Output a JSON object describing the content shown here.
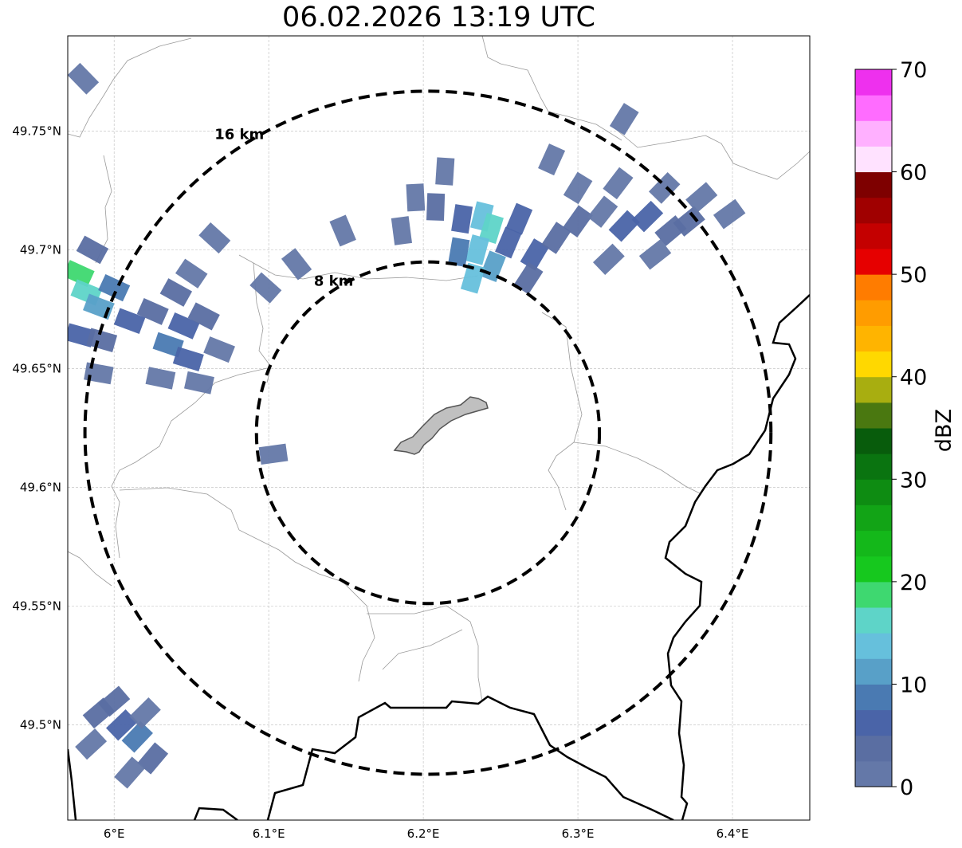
{
  "title": "06.02.2026 13:19 UTC",
  "map": {
    "lon_range": [
      5.97,
      6.45
    ],
    "lat_range": [
      49.46,
      49.79
    ],
    "radar_center": {
      "lon": 6.203,
      "lat": 49.623
    },
    "gridlines": true,
    "x_ticks": [
      {
        "lon": 6.0,
        "label": "6°E"
      },
      {
        "lon": 6.1,
        "label": "6.1°E"
      },
      {
        "lon": 6.2,
        "label": "6.2°E"
      },
      {
        "lon": 6.3,
        "label": "6.3°E"
      },
      {
        "lon": 6.4,
        "label": "6.4°E"
      }
    ],
    "y_ticks": [
      {
        "lat": 49.75,
        "label": "49.75°N"
      },
      {
        "lat": 49.7,
        "label": "49.7°N"
      },
      {
        "lat": 49.65,
        "label": "49.65°N"
      },
      {
        "lat": 49.6,
        "label": "49.6°N"
      },
      {
        "lat": 49.55,
        "label": "49.55°N"
      },
      {
        "lat": 49.5,
        "label": "49.5°N"
      }
    ],
    "range_rings": [
      {
        "km": 8,
        "label": "8 km"
      },
      {
        "km": 16,
        "label": "16 km"
      }
    ],
    "city_fill_color": "#c0c0c0",
    "ring_color": "#000000"
  },
  "colorbar": {
    "label": "dBZ",
    "min": 0,
    "max": 70,
    "step": 2.5,
    "ticks": [
      {
        "value": 0,
        "label": "0"
      },
      {
        "value": 10,
        "label": "10"
      },
      {
        "value": 20,
        "label": "20"
      },
      {
        "value": 30,
        "label": "30"
      },
      {
        "value": 40,
        "label": "40"
      },
      {
        "value": 50,
        "label": "50"
      },
      {
        "value": 60,
        "label": "60"
      },
      {
        "value": 70,
        "label": "70"
      }
    ],
    "colors": [
      "#6478a8",
      "#5a6ea2",
      "#4a64a8",
      "#4a7ab2",
      "#58a0c8",
      "#66c0dc",
      "#5ed4c8",
      "#3ed870",
      "#16c81e",
      "#14b81a",
      "#12a416",
      "#0e8c12",
      "#0a7410",
      "#085c0c",
      "#4a7810",
      "#a8ae10",
      "#ffd800",
      "#ffb400",
      "#ff9c00",
      "#ff7c00",
      "#e60000",
      "#c40000",
      "#a00000",
      "#7e0000",
      "#ffe2ff",
      "#ffb0ff",
      "#ff6cff",
      "#ee30ee"
    ]
  },
  "reflectivity_cells": [
    {
      "lon": 6.208,
      "lat": 49.718,
      "dbz": 3
    },
    {
      "lon": 6.225,
      "lat": 49.713,
      "dbz": 7
    },
    {
      "lon": 6.238,
      "lat": 49.714,
      "dbz": 14
    },
    {
      "lon": 6.244,
      "lat": 49.709,
      "dbz": 17
    },
    {
      "lon": 6.235,
      "lat": 49.7,
      "dbz": 13
    },
    {
      "lon": 6.223,
      "lat": 49.699,
      "dbz": 9
    },
    {
      "lon": 6.245,
      "lat": 49.693,
      "dbz": 12
    },
    {
      "lon": 6.232,
      "lat": 49.688,
      "dbz": 14
    },
    {
      "lon": 6.255,
      "lat": 49.703,
      "dbz": 7
    },
    {
      "lon": 6.262,
      "lat": 49.713,
      "dbz": 5
    },
    {
      "lon": 6.272,
      "lat": 49.698,
      "dbz": 5
    },
    {
      "lon": 6.286,
      "lat": 49.705,
      "dbz": 4
    },
    {
      "lon": 6.3,
      "lat": 49.712,
      "dbz": 3
    },
    {
      "lon": 6.316,
      "lat": 49.716,
      "dbz": 2
    },
    {
      "lon": 6.33,
      "lat": 49.71,
      "dbz": 6
    },
    {
      "lon": 6.345,
      "lat": 49.714,
      "dbz": 5
    },
    {
      "lon": 6.36,
      "lat": 49.708,
      "dbz": 4
    },
    {
      "lon": 6.372,
      "lat": 49.712,
      "dbz": 3
    },
    {
      "lon": 6.186,
      "lat": 49.708,
      "dbz": 2
    },
    {
      "lon": 6.195,
      "lat": 49.722,
      "dbz": 1
    },
    {
      "lon": 6.214,
      "lat": 49.733,
      "dbz": 1
    },
    {
      "lon": 6.283,
      "lat": 49.738,
      "dbz": 1
    },
    {
      "lon": 6.3,
      "lat": 49.726,
      "dbz": 1
    },
    {
      "lon": 6.326,
      "lat": 49.728,
      "dbz": 1
    },
    {
      "lon": 6.356,
      "lat": 49.726,
      "dbz": 1
    },
    {
      "lon": 6.38,
      "lat": 49.722,
      "dbz": 2
    },
    {
      "lon": 6.398,
      "lat": 49.715,
      "dbz": 1
    },
    {
      "lon": 6.35,
      "lat": 49.698,
      "dbz": 2
    },
    {
      "lon": 6.32,
      "lat": 49.696,
      "dbz": 1
    },
    {
      "lon": 6.268,
      "lat": 49.688,
      "dbz": 3
    },
    {
      "lon": 6.148,
      "lat": 49.708,
      "dbz": 1
    },
    {
      "lon": 6.118,
      "lat": 49.694,
      "dbz": 1
    },
    {
      "lon": 6.098,
      "lat": 49.684,
      "dbz": 1
    },
    {
      "lon": 6.065,
      "lat": 49.705,
      "dbz": 1
    },
    {
      "lon": 6.103,
      "lat": 49.614,
      "dbz": 2
    },
    {
      "lon": 6.33,
      "lat": 49.755,
      "dbz": 1
    },
    {
      "lon": 5.977,
      "lat": 49.69,
      "dbz": 18
    },
    {
      "lon": 5.982,
      "lat": 49.682,
      "dbz": 16
    },
    {
      "lon": 5.99,
      "lat": 49.676,
      "dbz": 10
    },
    {
      "lon": 6.0,
      "lat": 49.684,
      "dbz": 9
    },
    {
      "lon": 5.978,
      "lat": 49.664,
      "dbz": 6
    },
    {
      "lon": 5.992,
      "lat": 49.662,
      "dbz": 4
    },
    {
      "lon": 5.986,
      "lat": 49.7,
      "dbz": 3
    },
    {
      "lon": 6.01,
      "lat": 49.67,
      "dbz": 5
    },
    {
      "lon": 6.025,
      "lat": 49.674,
      "dbz": 4
    },
    {
      "lon": 6.04,
      "lat": 49.682,
      "dbz": 3
    },
    {
      "lon": 6.035,
      "lat": 49.66,
      "dbz": 8
    },
    {
      "lon": 6.048,
      "lat": 49.654,
      "dbz": 6
    },
    {
      "lon": 6.045,
      "lat": 49.668,
      "dbz": 5
    },
    {
      "lon": 6.058,
      "lat": 49.672,
      "dbz": 3
    },
    {
      "lon": 6.03,
      "lat": 49.646,
      "dbz": 2
    },
    {
      "lon": 6.055,
      "lat": 49.644,
      "dbz": 2
    },
    {
      "lon": 6.068,
      "lat": 49.658,
      "dbz": 1
    },
    {
      "lon": 6.05,
      "lat": 49.69,
      "dbz": 2
    },
    {
      "lon": 5.99,
      "lat": 49.648,
      "dbz": 2
    },
    {
      "lon": 5.98,
      "lat": 49.772,
      "dbz": 1
    },
    {
      "lon": 5.99,
      "lat": 49.505,
      "dbz": 4
    },
    {
      "lon": 6.005,
      "lat": 49.5,
      "dbz": 6
    },
    {
      "lon": 6.015,
      "lat": 49.495,
      "dbz": 9
    },
    {
      "lon": 6.0,
      "lat": 49.51,
      "dbz": 3
    },
    {
      "lon": 6.02,
      "lat": 49.505,
      "dbz": 2
    },
    {
      "lon": 5.985,
      "lat": 49.492,
      "dbz": 2
    },
    {
      "lon": 6.025,
      "lat": 49.486,
      "dbz": 3
    },
    {
      "lon": 6.01,
      "lat": 49.48,
      "dbz": 2
    }
  ]
}
